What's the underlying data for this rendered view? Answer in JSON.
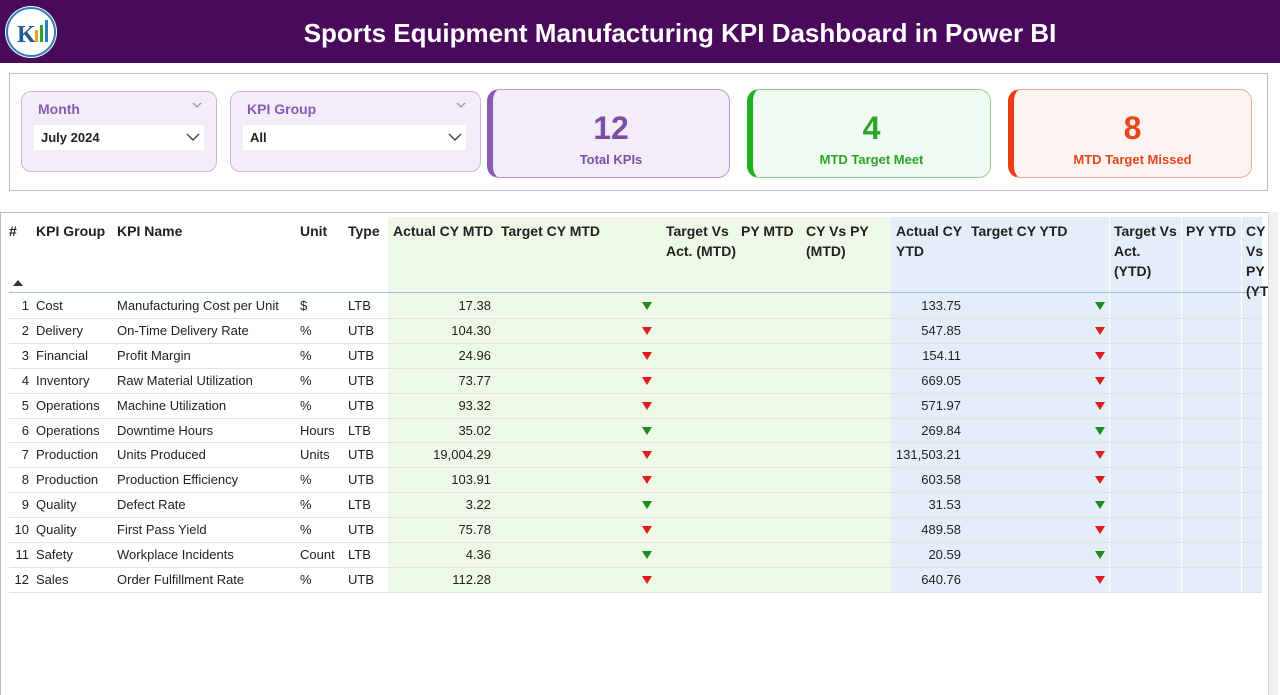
{
  "header": {
    "title": "Sports Equipment Manufacturing KPI Dashboard in Power BI"
  },
  "filters": [
    {
      "label": "Month",
      "value": "July 2024"
    },
    {
      "label": "KPI Group",
      "value": "All"
    }
  ],
  "cards": [
    {
      "value": 12,
      "label": "Total KPIs",
      "color": "#7b4fa6",
      "accent": "#8a5bb5",
      "background": "#f3edf8",
      "border": "#b89ad2"
    },
    {
      "value": 4,
      "label": "MTD Target Meet",
      "color": "#2aa52a",
      "accent": "#22b022",
      "background": "#f1faf0",
      "border": "#8fd18a"
    },
    {
      "value": 8,
      "label": "MTD Target Missed",
      "color": "#e8451c",
      "accent": "#f03c14",
      "background": "#fdf3f0",
      "border": "#f0a890"
    }
  ],
  "table": {
    "columns": [
      "#",
      "KPI Group",
      "KPI Name",
      "Unit",
      "Type",
      "Actual CY MTD",
      "Target CY MTD",
      "Target Vs Act. (MTD)",
      "PY MTD",
      "CY Vs PY (MTD)",
      "Actual CY YTD",
      "Target CY YTD",
      "Target Vs Act. (YTD)",
      "PY YTD",
      "CY Vs PY (YTD)"
    ],
    "rows": [
      {
        "n": 1,
        "group": "Cost",
        "name": "Manufacturing Cost per Unit",
        "unit": "$",
        "type": "LTB",
        "actual_cy_mtd": "17.38",
        "mtd_arrow": "#1f8a1f",
        "actual_cy_ytd": "133.75",
        "ytd_arrow": "#1f8a1f"
      },
      {
        "n": 2,
        "group": "Delivery",
        "name": "On-Time Delivery Rate",
        "unit": "%",
        "type": "UTB",
        "actual_cy_mtd": "104.30",
        "mtd_arrow": "#e01b1b",
        "actual_cy_ytd": "547.85",
        "ytd_arrow": "#e01b1b"
      },
      {
        "n": 3,
        "group": "Financial",
        "name": "Profit Margin",
        "unit": "%",
        "type": "UTB",
        "actual_cy_mtd": "24.96",
        "mtd_arrow": "#e01b1b",
        "actual_cy_ytd": "154.11",
        "ytd_arrow": "#e01b1b"
      },
      {
        "n": 4,
        "group": "Inventory",
        "name": "Raw Material Utilization",
        "unit": "%",
        "type": "UTB",
        "actual_cy_mtd": "73.77",
        "mtd_arrow": "#e01b1b",
        "actual_cy_ytd": "669.05",
        "ytd_arrow": "#e01b1b"
      },
      {
        "n": 5,
        "group": "Operations",
        "name": "Machine Utilization",
        "unit": "%",
        "type": "UTB",
        "actual_cy_mtd": "93.32",
        "mtd_arrow": "#e01b1b",
        "actual_cy_ytd": "571.97",
        "ytd_arrow": "#e01b1b"
      },
      {
        "n": 6,
        "group": "Operations",
        "name": "Downtime Hours",
        "unit": "Hours",
        "type": "LTB",
        "actual_cy_mtd": "35.02",
        "mtd_arrow": "#1f8a1f",
        "actual_cy_ytd": "269.84",
        "ytd_arrow": "#1f8a1f"
      },
      {
        "n": 7,
        "group": "Production",
        "name": "Units Produced",
        "unit": "Units",
        "type": "UTB",
        "actual_cy_mtd": "19,004.29",
        "mtd_arrow": "#e01b1b",
        "actual_cy_ytd": "131,503.21",
        "ytd_arrow": "#e01b1b"
      },
      {
        "n": 8,
        "group": "Production",
        "name": "Production Efficiency",
        "unit": "%",
        "type": "UTB",
        "actual_cy_mtd": "103.91",
        "mtd_arrow": "#e01b1b",
        "actual_cy_ytd": "603.58",
        "ytd_arrow": "#e01b1b"
      },
      {
        "n": 9,
        "group": "Quality",
        "name": "Defect Rate",
        "unit": "%",
        "type": "LTB",
        "actual_cy_mtd": "3.22",
        "mtd_arrow": "#1f8a1f",
        "actual_cy_ytd": "31.53",
        "ytd_arrow": "#1f8a1f"
      },
      {
        "n": 10,
        "group": "Quality",
        "name": "First Pass Yield",
        "unit": "%",
        "type": "UTB",
        "actual_cy_mtd": "75.78",
        "mtd_arrow": "#e01b1b",
        "actual_cy_ytd": "489.58",
        "ytd_arrow": "#e01b1b"
      },
      {
        "n": 11,
        "group": "Safety",
        "name": "Workplace Incidents",
        "unit": "Count",
        "type": "LTB",
        "actual_cy_mtd": "4.36",
        "mtd_arrow": "#1f8a1f",
        "actual_cy_ytd": "20.59",
        "ytd_arrow": "#1f8a1f"
      },
      {
        "n": 12,
        "group": "Sales",
        "name": "Order Fulfillment Rate",
        "unit": "%",
        "type": "UTB",
        "actual_cy_mtd": "112.28",
        "mtd_arrow": "#e01b1b",
        "actual_cy_ytd": "640.76",
        "ytd_arrow": "#e01b1b"
      }
    ]
  }
}
